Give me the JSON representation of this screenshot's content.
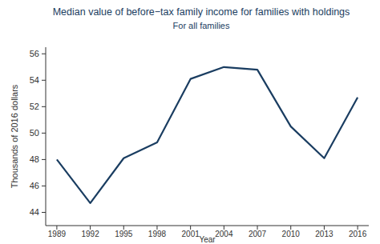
{
  "chart_data": {
    "type": "line",
    "title": "Median value of before−tax family income for families with holdings",
    "subtitle": "For all families",
    "x_label": "Year",
    "y_label": "Thousands of 2016 dollars",
    "x": [
      1989,
      1992,
      1995,
      1998,
      2001,
      2004,
      2007,
      2010,
      2013,
      2016
    ],
    "values": [
      48.0,
      44.7,
      48.1,
      49.3,
      54.1,
      55.0,
      54.8,
      50.5,
      48.1,
      52.7
    ],
    "color": "#1a3d61",
    "xlim": [
      1988,
      2017
    ],
    "xticks": [
      1989,
      1992,
      1995,
      1998,
      2001,
      2004,
      2007,
      2010,
      2013,
      2016
    ],
    "ylim": [
      43,
      56.5
    ],
    "yticks": [
      44,
      46,
      48,
      50,
      52,
      54,
      56
    ],
    "grid": false
  }
}
